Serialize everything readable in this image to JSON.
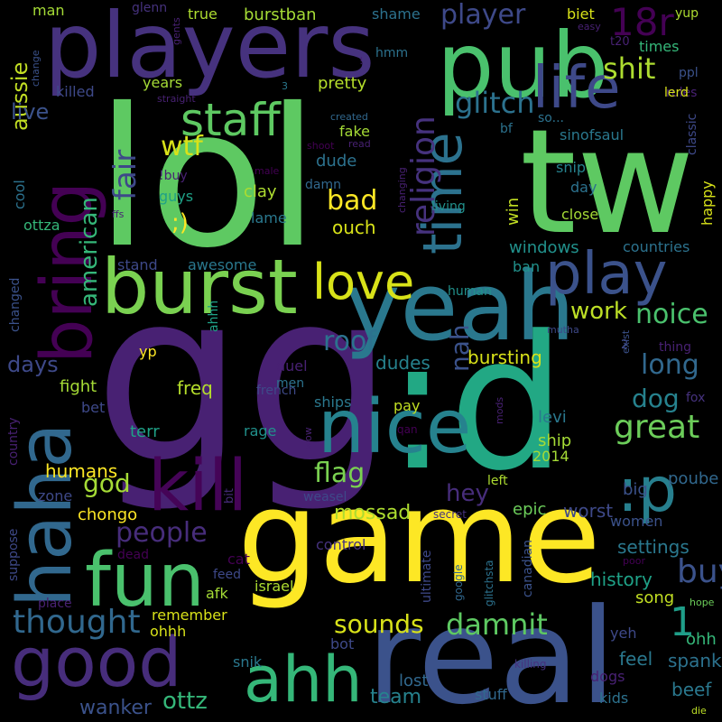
{
  "words": [
    {
      "text": "lol",
      "color": "#5ec962"
    },
    {
      "text": "tw",
      "color": "#5ec962"
    },
    {
      "text": "gg",
      "color": "#482173"
    },
    {
      "text": ":d",
      "color": "#22a884"
    },
    {
      "text": "game",
      "color": "#fde725"
    },
    {
      "text": "real",
      "color": "#3b528b"
    },
    {
      "text": "players",
      "color": "#46327e"
    },
    {
      "text": "pub",
      "color": "#4ac16d"
    },
    {
      "text": "yeah",
      "color": "#2a788e"
    },
    {
      "text": "burst",
      "color": "#7ad151"
    },
    {
      "text": "haha",
      "color": "#31688e"
    },
    {
      "text": "bring",
      "color": "#440154"
    },
    {
      "text": "nice",
      "color": "#26828e"
    },
    {
      "text": "fun",
      "color": "#4ac16d"
    },
    {
      "text": "good",
      "color": "#472d7b"
    },
    {
      "text": "kill",
      "color": "#450457"
    },
    {
      "text": ":p",
      "color": "#277f8e"
    },
    {
      "text": "staff",
      "color": "#5ec962"
    },
    {
      "text": "life",
      "color": "#3e4989"
    },
    {
      "text": "time",
      "color": "#2c728e"
    },
    {
      "text": "play",
      "color": "#3b528b"
    },
    {
      "text": "love",
      "color": "#d8e219"
    },
    {
      "text": "ahh",
      "color": "#35b779"
    },
    {
      "text": "1",
      "color": "#1f9e89"
    },
    {
      "text": "18r",
      "color": "#440154"
    },
    {
      "text": "aussie",
      "color": "#c2df23"
    },
    {
      "text": "shit",
      "color": "#addc30"
    },
    {
      "text": "religion",
      "color": "#46327e"
    },
    {
      "text": "glitch",
      "color": "#2c728e"
    },
    {
      "text": "fair",
      "color": "#3e4989"
    },
    {
      "text": "american",
      "color": "#35b779"
    },
    {
      "text": "thought",
      "color": "#31688e"
    },
    {
      "text": "damnit",
      "color": "#5ec962"
    },
    {
      "text": "sounds",
      "color": "#d8e219"
    },
    {
      "text": "people",
      "color": "#472d7b"
    },
    {
      "text": "buy",
      "color": "#3b528b"
    },
    {
      "text": "great",
      "color": "#6ccd5a"
    },
    {
      "text": "noice",
      "color": "#4ac16d"
    },
    {
      "text": "long",
      "color": "#31688e"
    },
    {
      "text": "nah",
      "color": "#3b528b"
    },
    {
      "text": "work",
      "color": "#bddf26"
    },
    {
      "text": "flag",
      "color": "#7ad151"
    },
    {
      "text": "wtf",
      "color": "#d8e219"
    },
    {
      "text": "bad",
      "color": "#fde725"
    },
    {
      "text": "roof",
      "color": "#2c728e"
    },
    {
      "text": "god",
      "color": "#a5db36"
    },
    {
      "text": "dog",
      "color": "#26828e"
    },
    {
      "text": "hey",
      "color": "#472d7b"
    },
    {
      "text": "live",
      "color": "#3b528b"
    },
    {
      "text": "player",
      "color": "#3e4989"
    },
    {
      "text": "days",
      "color": "#3e4989"
    },
    {
      "text": "mossad",
      "color": "#addc30"
    },
    {
      "text": "ottz",
      "color": "#35b779"
    },
    {
      "text": "team",
      "color": "#26828e"
    },
    {
      "text": "wanker",
      "color": "#3b528b"
    },
    {
      "text": "lost",
      "color": "#31688e"
    },
    {
      "text": "spank",
      "color": "#2c728e"
    },
    {
      "text": "beef",
      "color": "#2a788e"
    },
    {
      "text": "feel",
      "color": "#2a788e"
    },
    {
      "text": "history",
      "color": "#1fa187"
    },
    {
      "text": "settings",
      "color": "#2a788e"
    },
    {
      "text": "worst",
      "color": "#3e4989"
    },
    {
      "text": "song",
      "color": "#c2df23"
    },
    {
      "text": "bursting",
      "color": "#d8e219"
    },
    {
      "text": "dudes",
      "color": "#26828e"
    },
    {
      "text": "humans",
      "color": "#fde725"
    },
    {
      "text": "chongo",
      "color": "#fde725"
    },
    {
      "text": "epic",
      "color": "#6ccd5a"
    },
    {
      "text": "ship",
      "color": "#a5db36"
    },
    {
      "text": "poube",
      "color": "#31688e"
    },
    {
      "text": "levi",
      "color": "#2a788e"
    },
    {
      "text": "2014",
      "color": "#a5db36"
    },
    {
      "text": "women",
      "color": "#3b528b"
    },
    {
      "text": "big",
      "color": "#3b528b"
    },
    {
      "text": "fight",
      "color": "#a5db36"
    },
    {
      "text": "freq",
      "color": "#b5de2b"
    },
    {
      "text": "bet",
      "color": "#3e4989"
    },
    {
      "text": "terr",
      "color": "#1fa187"
    },
    {
      "text": "rage",
      "color": "#21918c"
    },
    {
      "text": "pay",
      "color": "#c2df23"
    },
    {
      "text": "fake",
      "color": "#a5db36"
    },
    {
      "text": "dude",
      "color": "#2c728e"
    },
    {
      "text": "damn",
      "color": "#31688e"
    },
    {
      "text": "clay",
      "color": "#addc30"
    },
    {
      "text": "lame",
      "color": "#2a788e"
    },
    {
      "text": "guys",
      "color": "#1fa187"
    },
    {
      "text": "ouch",
      "color": "#d8e219"
    },
    {
      "text": "win",
      "color": "#c2df23"
    },
    {
      "text": "day",
      "color": "#2c728e"
    },
    {
      "text": "close",
      "color": "#a5db36"
    },
    {
      "text": "windows",
      "color": "#21918c"
    },
    {
      "text": "countries",
      "color": "#2c728e"
    },
    {
      "text": "ban",
      "color": "#21918c"
    },
    {
      "text": "human",
      "color": "#21918c"
    },
    {
      "text": "stand",
      "color": "#3e4989"
    },
    {
      "text": "awesome",
      "color": "#2a788e"
    },
    {
      "text": "years",
      "color": "#a5db36"
    },
    {
      "text": "pretty",
      "color": "#b5de2b"
    },
    {
      "text": "killed",
      "color": "#3e4989"
    },
    {
      "text": "cool",
      "color": "#2c728e"
    },
    {
      "text": "duel",
      "color": "#482173"
    },
    {
      "text": "men",
      "color": "#2c728e"
    },
    {
      "text": "ahhh",
      "color": "#1fa187"
    },
    {
      "text": "changed",
      "color": "#3b528b"
    },
    {
      "text": "country",
      "color": "#482173"
    },
    {
      "text": "french",
      "color": "#3e4989"
    },
    {
      "text": "ships",
      "color": "#2a788e"
    },
    {
      "text": "burstban",
      "color": "#a5db36"
    },
    {
      "text": "true",
      "color": "#addc30"
    },
    {
      "text": "glenn",
      "color": "#46327e"
    },
    {
      "text": "man",
      "color": "#a5db36"
    },
    {
      "text": "shame",
      "color": "#2c728e"
    },
    {
      "text": "biet",
      "color": "#d8e219"
    },
    {
      "text": "yup",
      "color": "#addc30"
    },
    {
      "text": "t20",
      "color": "#482173"
    },
    {
      "text": "times",
      "color": "#35b779"
    },
    {
      "text": "ppl",
      "color": "#3b528b"
    },
    {
      "text": "rules",
      "color": "#482173"
    },
    {
      "text": "lerd",
      "color": "#d8e219"
    },
    {
      "text": "classic",
      "color": "#3e4989"
    },
    {
      "text": "happy",
      "color": "#d8e219"
    },
    {
      "text": "sinofsaul",
      "color": "#2a788e"
    },
    {
      "text": "snip",
      "color": "#26828e"
    },
    {
      "text": "bf",
      "color": "#2c728e"
    },
    {
      "text": "so...",
      "color": "#2c728e"
    },
    {
      "text": "created",
      "color": "#31688e"
    },
    {
      "text": "read",
      "color": "#482173"
    },
    {
      "text": "shoot",
      "color": "#440154"
    },
    {
      "text": "hmm",
      "color": "#2c728e"
    },
    {
      "text": "gents",
      "color": "#482173"
    },
    {
      "text": "straight",
      "color": "#482173"
    },
    {
      "text": "change",
      "color": "#3b528b"
    },
    {
      "text": "easy",
      "color": "#482173"
    },
    {
      "text": "3",
      "color": "#2a788e"
    },
    {
      "text": "!buy",
      "color": "#482173"
    },
    {
      "text": "male",
      "color": "#440154"
    },
    {
      "text": "changing",
      "color": "#482173"
    },
    {
      "text": "living",
      "color": "#21918c"
    },
    {
      "text": "ffs",
      "color": "#482173"
    },
    {
      "text": ";)",
      "color": "#fde725"
    },
    {
      "text": "ottza",
      "color": "#35b779"
    },
    {
      "text": "qan",
      "color": "#440154"
    },
    {
      "text": "mutha",
      "color": "#3e4989"
    },
    {
      "text": "thing",
      "color": "#482173"
    },
    {
      "text": "exist",
      "color": "#3b528b"
    },
    {
      "text": "2",
      "color": "#3e4989"
    },
    {
      "text": "fox",
      "color": "#46327e"
    },
    {
      "text": "mods",
      "color": "#482173"
    },
    {
      "text": "glitchsta",
      "color": "#2c728e"
    },
    {
      "text": "left",
      "color": "#addc30"
    },
    {
      "text": "secret",
      "color": "#46327e"
    },
    {
      "text": "control",
      "color": "#46327e"
    },
    {
      "text": "google",
      "color": "#31688e"
    },
    {
      "text": "canadian",
      "color": "#3b528b"
    },
    {
      "text": "ultimate",
      "color": "#3e4989"
    },
    {
      "text": "poor",
      "color": "#440154"
    },
    {
      "text": "hope",
      "color": "#6ccd5a"
    },
    {
      "text": "ohh",
      "color": "#35b779"
    },
    {
      "text": "yeh",
      "color": "#3e4989"
    },
    {
      "text": "dogs",
      "color": "#482173"
    },
    {
      "text": "kids",
      "color": "#2c728e"
    },
    {
      "text": "killing",
      "color": "#46327e"
    },
    {
      "text": "stuff",
      "color": "#31688e"
    },
    {
      "text": "die",
      "color": "#bddf26"
    },
    {
      "text": "snik",
      "color": "#2a788e"
    },
    {
      "text": "bot",
      "color": "#3e4989"
    },
    {
      "text": "remember",
      "color": "#d8e219"
    },
    {
      "text": "ohhh",
      "color": "#d8e219"
    },
    {
      "text": "afk",
      "color": "#a5db36"
    },
    {
      "text": "israel",
      "color": "#addc30"
    },
    {
      "text": "cat",
      "color": "#440154"
    },
    {
      "text": "feed",
      "color": "#3e4989"
    },
    {
      "text": "dead",
      "color": "#440154"
    },
    {
      "text": "place",
      "color": "#482173"
    },
    {
      "text": "zone",
      "color": "#3e4989"
    },
    {
      "text": "suppose",
      "color": "#3e4989"
    },
    {
      "text": "bit",
      "color": "#472d7b"
    },
    {
      "text": "weasel",
      "color": "#3e4989"
    },
    {
      "text": "wow",
      "color": "#482173"
    },
    {
      "text": "yp",
      "color": "#fde725"
    },
    {
      "text": "!",
      "color": "#482173"
    }
  ]
}
